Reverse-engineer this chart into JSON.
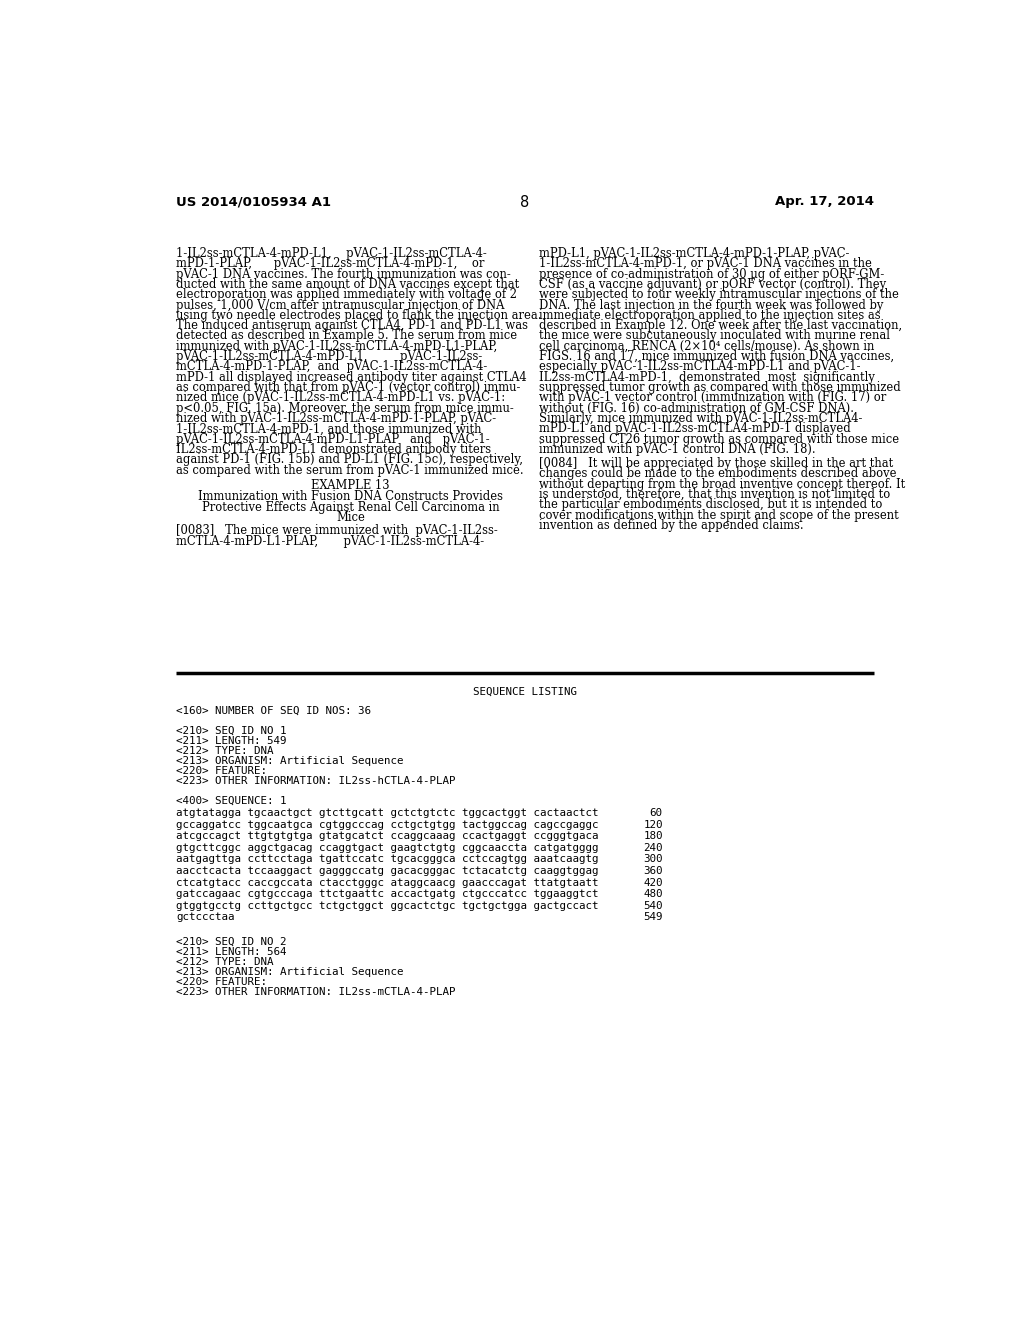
{
  "background_color": "#ffffff",
  "header_left": "US 2014/0105934 A1",
  "header_right": "Apr. 17, 2014",
  "page_number": "8",
  "col1_lines": [
    "1-IL2ss-mCTLA-4-mPD-L1,    pVAC-1-IL2ss-mCTLA-4-",
    "mPD-1-PLAP,      pVAC-1-IL2ss-mCTLA-4-mPD-1,    or",
    "pVAC-1 DNA vaccines. The fourth immunization was con-",
    "ducted with the same amount of DNA vaccines except that",
    "electroporation was applied immediately with voltage of 2",
    "pulses, 1,000 V/cm after intramuscular injection of DNA",
    "using two needle electrodes placed to flank the injection area.",
    "The induced antiserum against CTLA4, PD-1 and PD-L1 was",
    "detected as described in Example 5. The serum from mice",
    "immunized with pVAC-1-IL2ss-mCTLA-4-mPD-L1-PLAP,",
    "pVAC-1-IL2ss-mCTLA-4-mPD-L1,         pVAC-1-IL2ss-",
    "mCTLA-4-mPD-1-PLAP,  and  pVAC-1-IL2ss-mCTLA-4-",
    "mPD-1 all displayed increased antibody titer against CTLA4",
    "as compared with that from pVAC-1 (vector control) immu-",
    "nized mice (pVAC-1-IL2ss-mCTLA-4-mPD-L1 vs. pVAC-1:",
    "p<0.05, FIG. 15a). Moreover, the serum from mice immu-",
    "nized with pVAC-1-IL2ss-mCTLA-4-mPD-1-PLAP, pVAC-",
    "1-IL2ss-mCTLA-4-mPD-1, and those immunized with",
    "pVAC-1-IL2ss-mCTLA-4-mPD-L1-PLAP   and   pVAC-1-",
    "IL2ss-mCTLA-4-mPD-L1 demonstrated antibody titers",
    "against PD-1 (FIG. 15b) and PD-L1 (FIG. 15c), respectively,",
    "as compared with the serum from pVAC-1 immunized mice."
  ],
  "col2_lines": [
    "mPD-L1, pVAC-1-IL2ss-mCTLA-4-mPD-1-PLAP, pVAC-",
    "1-IL2ss-mCTLA-4-mPD-1, or pVAC-1 DNA vaccines in the",
    "presence of co-administration of 30 μg of either pORF-GM-",
    "CSF (as a vaccine adjuvant) or pORF vector (control). They",
    "were subjected to four weekly intramuscular injections of the",
    "DNA. The last injection in the fourth week was followed by",
    "immediate electroporation applied to the injection sites as",
    "described in Example 12. One week after the last vaccination,",
    "the mice were subcutaneously inoculated with murine renal",
    "cell carcinoma, RENCA (2×10⁴ cells/mouse). As shown in",
    "FIGS. 16 and 17, mice immunized with fusion DNA vaccines,",
    "especially pVAC-1-IL2ss-mCTLA4-mPD-L1 and pVAC-1-",
    "IL2ss-mCTLA4-mPD-1,  demonstrated  most  significantly",
    "suppressed tumor growth as compared with those immunized",
    "with pVAC-1 vector control (immunization with (FIG. 17) or",
    "without (FIG. 16) co-administration of GM-CSF DNA).",
    "Similarly, mice immunized with pVAC-1-IL2ss-mCTLA4-",
    "mPD-L1 and pVAC-1-IL2ss-mCTLA4-mPD-1 displayed",
    "suppressed CT26 tumor growth as compared with those mice",
    "immunized with pVAC-1 control DNA (FIG. 18)."
  ],
  "example13_title": "EXAMPLE 13",
  "example13_sub1": "Immunization with Fusion DNA Constructs Provides",
  "example13_sub2": "Protective Effects Against Renal Cell Carcinoma in",
  "example13_sub3": "Mice",
  "p83_line1": "[0083]   The mice were immunized with  pVAC-1-IL2ss-",
  "p83_line2": "mCTLA-4-mPD-L1-PLAP,       pVAC-1-IL2ss-mCTLA-4-",
  "p84_line1": "[0084]   It will be appreciated by those skilled in the art that",
  "p84_lines": [
    "changes could be made to the embodiments described above",
    "without departing from the broad inventive concept thereof. It",
    "is understood, therefore, that this invention is not limited to",
    "the particular embodiments disclosed, but it is intended to",
    "cover modifications within the spirit and scope of the present",
    "invention as defined by the appended claims."
  ],
  "seq_title": "SEQUENCE LISTING",
  "seq_meta": [
    "<160> NUMBER OF SEQ ID NOS: 36",
    "",
    "<210> SEQ ID NO 1",
    "<211> LENGTH: 549",
    "<212> TYPE: DNA",
    "<213> ORGANISM: Artificial Sequence",
    "<220> FEATURE:",
    "<223> OTHER INFORMATION: IL2ss-hCTLA-4-PLAP",
    "",
    "<400> SEQUENCE: 1"
  ],
  "seq_dna": [
    [
      "atgtatagga tgcaactgct gtcttgcatt gctctgtctc tggcactggt cactaactct",
      "60"
    ],
    [
      "gccaggatcc tggcaatgca cgtggcccag cctgctgtgg tactggccag cagccgaggc",
      "120"
    ],
    [
      "atcgccagct ttgtgtgtga gtatgcatct ccaggcaaag ccactgaggt ccgggtgaca",
      "180"
    ],
    [
      "gtgcttcggc aggctgacag ccaggtgact gaagtctgtg cggcaaccta catgatgggg",
      "240"
    ],
    [
      "aatgagttga ccttcctaga tgattccatc tgcacgggca cctccagtgg aaatcaagtg",
      "300"
    ],
    [
      "aacctcacta tccaaggact gagggccatg gacacgggac tctacatctg caaggtggag",
      "360"
    ],
    [
      "ctcatgtacc caccgccata ctacctgggc ataggcaacg gaacccagat ttatgtaatt",
      "420"
    ],
    [
      "gatccagaac cgtgcccaga ttctgaattc accactgatg ctgcccatcc tggaaggtct",
      "480"
    ],
    [
      "gtggtgcctg ccttgctgcc tctgctggct ggcactctgc tgctgctgga gactgccact",
      "540"
    ],
    [
      "gctccctaa",
      "549"
    ]
  ],
  "seq2_meta": [
    "",
    "<210> SEQ ID NO 2",
    "<211> LENGTH: 564",
    "<212> TYPE: DNA",
    "<213> ORGANISM: Artificial Sequence",
    "<220> FEATURE:",
    "<223> OTHER INFORMATION: IL2ss-mCTLA-4-PLAP"
  ]
}
